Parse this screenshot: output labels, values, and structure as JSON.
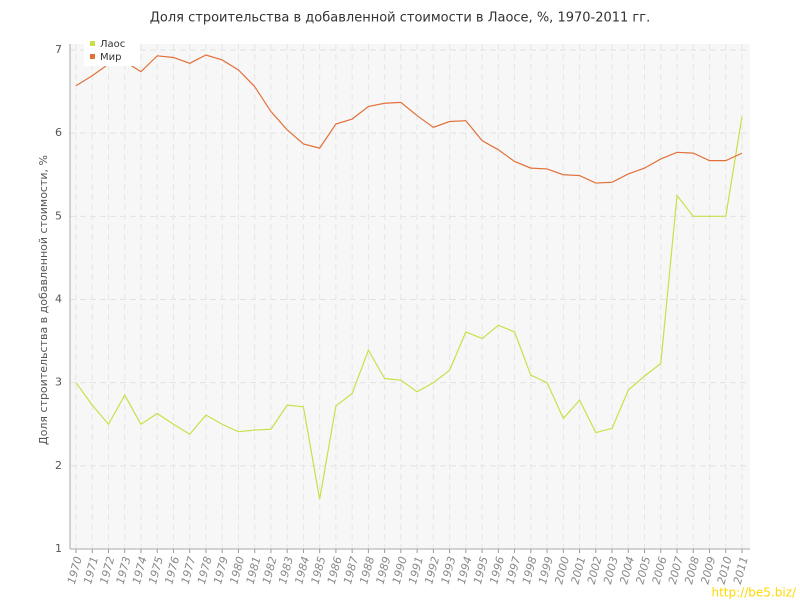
{
  "chart_data": {
    "type": "line",
    "title": "Доля строительства в добавленной стоимости в Лаосе, %, 1970-2011 гг.",
    "y_label": "Доля строительства в добавленной стоимости, %",
    "watermark": "http://be5.biz/",
    "x": [
      1970,
      1971,
      1972,
      1973,
      1974,
      1975,
      1976,
      1977,
      1978,
      1979,
      1980,
      1981,
      1982,
      1983,
      1984,
      1985,
      1986,
      1987,
      1988,
      1989,
      1990,
      1991,
      1992,
      1993,
      1994,
      1995,
      1996,
      1997,
      1998,
      1999,
      2000,
      2001,
      2002,
      2003,
      2004,
      2005,
      2006,
      2007,
      2008,
      2009,
      2010,
      2011
    ],
    "xlim": [
      1970,
      2011
    ],
    "ylim": [
      1,
      7
    ],
    "yticks": [
      1,
      2,
      3,
      4,
      5,
      6,
      7
    ],
    "grid": true,
    "legend": "top-left",
    "series": [
      {
        "name": "Лаос",
        "color": "#c8e04a",
        "values": [
          3.0,
          2.73,
          2.5,
          2.85,
          2.5,
          2.63,
          2.5,
          2.38,
          2.61,
          2.5,
          2.41,
          2.43,
          2.44,
          2.73,
          2.71,
          1.6,
          2.72,
          2.87,
          3.39,
          3.05,
          3.03,
          2.89,
          3.0,
          3.15,
          3.61,
          3.53,
          3.69,
          3.61,
          3.09,
          3.0,
          2.57,
          2.79,
          2.4,
          2.45,
          2.91,
          3.08,
          3.23,
          5.25,
          5.0,
          5.0,
          5.0,
          6.2
        ]
      },
      {
        "name": "Мир",
        "color": "#e2703a",
        "values": [
          6.57,
          6.69,
          6.83,
          6.86,
          6.74,
          6.93,
          6.91,
          6.84,
          6.94,
          6.88,
          6.76,
          6.56,
          6.26,
          6.04,
          5.87,
          5.82,
          6.11,
          6.17,
          6.32,
          6.36,
          6.37,
          6.21,
          6.07,
          6.14,
          6.15,
          5.91,
          5.8,
          5.66,
          5.58,
          5.57,
          5.5,
          5.49,
          5.4,
          5.41,
          5.51,
          5.58,
          5.69,
          5.77,
          5.76,
          5.67,
          5.67,
          5.76
        ]
      }
    ]
  }
}
